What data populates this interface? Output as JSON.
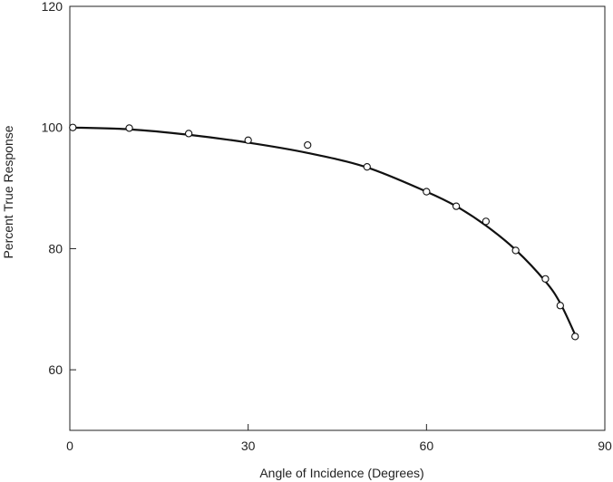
{
  "chart_data": {
    "type": "scatter",
    "xlabel": "Angle of Incidence (Degrees)",
    "ylabel": "Percent True Response",
    "xlim": [
      0,
      90
    ],
    "ylim": [
      50,
      120
    ],
    "x_ticks": [
      0,
      30,
      60,
      90
    ],
    "y_ticks": [
      60,
      80,
      100,
      120
    ],
    "grid": false,
    "series": [
      {
        "type": "scatter",
        "marker": "open-circle",
        "x": [
          0.5,
          10,
          20,
          30,
          40,
          50,
          60,
          65,
          70,
          75,
          80,
          82.5,
          85
        ],
        "y": [
          100,
          99.9,
          99,
          97.9,
          97.1,
          93.5,
          89.4,
          87,
          84.5,
          79.7,
          75,
          70.6,
          65.5
        ]
      },
      {
        "type": "line",
        "style": "fitted-curve",
        "x": [
          0,
          10,
          20,
          30,
          40,
          50,
          60,
          65,
          70,
          75,
          80,
          82.5,
          85
        ],
        "y": [
          100,
          99.7,
          98.8,
          97.5,
          95.8,
          93.4,
          89.4,
          87,
          83.8,
          79.8,
          74.6,
          71,
          65.8
        ]
      }
    ]
  }
}
